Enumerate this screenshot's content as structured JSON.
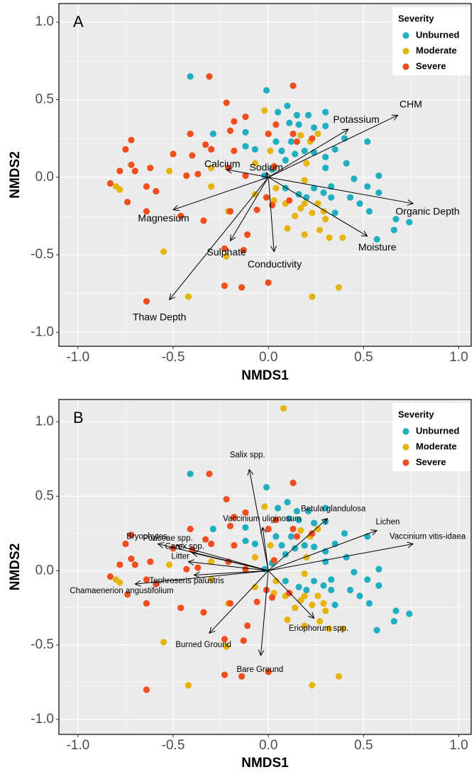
{
  "chart_data": [
    {
      "type": "scatter",
      "title": "A",
      "xlabel": "NMDS1",
      "ylabel": "NMDS2",
      "legend_title": "Severity",
      "legend": "top-right",
      "grid": true,
      "xlim": [
        -1.1,
        1.065
      ],
      "ylim": [
        -1.09,
        1.12
      ],
      "xticks": [
        {
          "value": -1,
          "label": "-1.0"
        },
        -0.5,
        {
          "value": 0,
          "label": "0.0"
        },
        0.5,
        {
          "value": 1,
          "label": "1.0"
        }
      ],
      "yticks": [
        {
          "value": -1,
          "label": "-1.0"
        },
        -0.5,
        {
          "value": 0,
          "label": "0.0"
        },
        0.5,
        {
          "value": 1,
          "label": "1.0"
        }
      ],
      "series": [
        {
          "name": "Unburned",
          "color": "#1FAFC0",
          "x": [
            -0.41,
            -0.01,
            -0.29,
            -0.12,
            -0.12,
            -0.07,
            0.05,
            0.1,
            0.15,
            0.21,
            0.24,
            0.3,
            0.3,
            0.11,
            0.16,
            0.07,
            0.04,
            0.12,
            0.14,
            0.09,
            0.19,
            0.24,
            0.3,
            0.4,
            0.52,
            0.35,
            0.3,
            0.41,
            0.45,
            0.58,
            0.52,
            0.33,
            0.43,
            0.48,
            0.53,
            0.58,
            0.29,
            0.24,
            0.66,
            0.67,
            0.74,
            0.57,
            0.2,
            0.16,
            0.09,
            0.02,
            -0.02,
            0.33,
            0.35
          ],
          "y": [
            0.65,
            0.56,
            0.28,
            0.29,
            0.2,
            0.18,
            0.42,
            0.46,
            0.4,
            0.4,
            0.32,
            0.42,
            0.33,
            0.35,
            0.34,
            0.17,
            0.23,
            0.23,
            0.15,
            0.11,
            0.17,
            0.16,
            0.13,
            0.25,
            0.23,
            0.18,
            0.06,
            0.09,
            -0.01,
            0.01,
            -0.06,
            -0.13,
            -0.13,
            -0.17,
            -0.22,
            -0.1,
            -0.1,
            -0.07,
            -0.34,
            -0.27,
            -0.29,
            -0.4,
            -0.13,
            -0.11,
            -0.07,
            0.05,
            0.01,
            -0.06,
            -0.23
          ]
        },
        {
          "name": "Moderate",
          "color": "#E5B50B",
          "x": [
            -0.02,
            -0.52,
            -0.8,
            -0.78,
            -0.55,
            -0.42,
            -0.3,
            -0.21,
            -0.3,
            -0.07,
            0.03,
            0.09,
            0.1,
            0.19,
            0.14,
            0.17,
            0.23,
            0.29,
            0.3,
            0.27,
            0.32,
            0.39,
            0.23,
            0.37,
            0.17,
            0.01,
            0.22,
            0.26,
            0.2,
            -0.07,
            0.04,
            0.19,
            -0.22,
            0.19,
            0.26
          ],
          "y": [
            0.43,
            0.04,
            -0.06,
            -0.08,
            -0.48,
            -0.77,
            -0.06,
            -0.22,
            0.06,
            -0.11,
            -0.15,
            -0.17,
            -0.33,
            -0.37,
            -0.25,
            -0.2,
            -0.23,
            -0.22,
            -0.27,
            -0.34,
            -0.39,
            -0.39,
            -0.77,
            -0.71,
            0.27,
            0.17,
            0.23,
            0.28,
            0.09,
            0.09,
            -0.07,
            -0.02,
            -0.51,
            -0.17,
            -0.17
          ]
        },
        {
          "name": "Severe",
          "color": "#F04E1E",
          "x": [
            -0.31,
            0.13,
            -0.22,
            -0.72,
            -0.75,
            -0.72,
            -0.7,
            -0.83,
            -0.78,
            -0.74,
            -0.64,
            -0.62,
            -0.59,
            -0.64,
            -0.5,
            -0.43,
            -0.41,
            -0.4,
            -0.37,
            -0.33,
            -0.3,
            -0.2,
            -0.18,
            -0.12,
            0.0,
            0.04,
            -0.18,
            -0.21,
            -0.2,
            -0.34,
            -0.46,
            -0.23,
            -0.13,
            -0.11,
            -0.06,
            0.02,
            0.11,
            -0.01,
            -0.12,
            0.13,
            0.15,
            0.23,
            -0.23,
            -0.14,
            0.0,
            -0.64,
            0.03
          ],
          "y": [
            0.65,
            0.59,
            0.48,
            0.24,
            0.18,
            0.08,
            0.04,
            -0.04,
            0.04,
            -0.16,
            -0.06,
            0.06,
            -0.09,
            -0.22,
            0.15,
            0.01,
            0.28,
            0.14,
            0.02,
            0.21,
            0.18,
            0.3,
            0.36,
            0.39,
            0.28,
            0.34,
            0.17,
            0.06,
            -0.22,
            -0.28,
            -0.25,
            -0.46,
            -0.47,
            -0.37,
            -0.21,
            -0.18,
            -0.15,
            -0.13,
            0.01,
            0.28,
            0.23,
            0.25,
            -0.7,
            -0.71,
            -0.68,
            -0.8,
            0.07
          ]
        }
      ],
      "vectors": [
        {
          "label": "CHM",
          "x": 0.68,
          "y": 0.4
        },
        {
          "label": "Potassium",
          "x": 0.42,
          "y": 0.31
        },
        {
          "label": "Calcium",
          "x": -0.22,
          "y": 0.05
        },
        {
          "label": "Sodium",
          "x": -0.01,
          "y": 0.03
        },
        {
          "label": "Organic Depth",
          "x": 0.76,
          "y": -0.17
        },
        {
          "label": "Moisture",
          "x": 0.52,
          "y": -0.38
        },
        {
          "label": "Conductivity",
          "x": 0.03,
          "y": -0.48
        },
        {
          "label": "Sulphate",
          "x": -0.2,
          "y": -0.41
        },
        {
          "label": "Magnesium",
          "x": -0.5,
          "y": -0.21
        },
        {
          "label": "Thaw Depth",
          "x": -0.52,
          "y": -0.79
        }
      ]
    },
    {
      "type": "scatter",
      "title": "B",
      "xlabel": "NMDS1",
      "ylabel": "NMDS2",
      "legend_title": "Severity",
      "legend": "top-right",
      "grid": true,
      "xlim": [
        -1.1,
        1.065
      ],
      "ylim": [
        -1.1,
        1.15
      ],
      "xticks": [
        {
          "value": -1,
          "label": "-1.0"
        },
        -0.5,
        {
          "value": 0,
          "label": "0.0"
        },
        0.5,
        {
          "value": 1,
          "label": "1.0"
        }
      ],
      "yticks": [
        {
          "value": -1,
          "label": "-1.0"
        },
        -0.5,
        {
          "value": 0,
          "label": "0.0"
        },
        0.5,
        {
          "value": 1,
          "label": "1.0"
        }
      ],
      "series": [
        {
          "name": "Unburned",
          "color": "#1FAFC0",
          "x": [
            -0.41,
            -0.01,
            -0.29,
            -0.12,
            -0.12,
            -0.07,
            0.05,
            0.1,
            0.15,
            0.21,
            0.24,
            0.3,
            0.3,
            0.11,
            0.16,
            0.07,
            0.04,
            0.12,
            0.14,
            0.09,
            0.19,
            0.24,
            0.3,
            0.4,
            0.52,
            0.35,
            0.3,
            0.41,
            0.45,
            0.58,
            0.52,
            0.33,
            0.43,
            0.48,
            0.53,
            0.58,
            0.29,
            0.24,
            0.66,
            0.67,
            0.74,
            0.57,
            0.2,
            0.16,
            0.09,
            0.02,
            -0.02,
            0.33,
            0.35
          ],
          "y": [
            0.65,
            0.56,
            0.28,
            0.29,
            0.2,
            0.18,
            0.42,
            0.46,
            0.4,
            0.4,
            0.32,
            0.42,
            0.33,
            0.35,
            0.34,
            0.17,
            0.23,
            0.23,
            0.15,
            0.11,
            0.17,
            0.16,
            0.13,
            0.25,
            0.23,
            0.18,
            0.06,
            0.09,
            -0.01,
            0.01,
            -0.06,
            -0.13,
            -0.13,
            -0.17,
            -0.22,
            -0.1,
            -0.1,
            -0.07,
            -0.34,
            -0.27,
            -0.29,
            -0.4,
            -0.13,
            -0.11,
            -0.07,
            0.05,
            0.01,
            -0.06,
            -0.23
          ]
        },
        {
          "name": "Moderate",
          "color": "#E5B50B",
          "x": [
            0.08,
            -0.02,
            -0.52,
            -0.8,
            -0.78,
            -0.55,
            -0.42,
            -0.3,
            -0.21,
            -0.3,
            -0.07,
            0.03,
            0.09,
            0.1,
            0.19,
            0.14,
            0.17,
            0.23,
            0.29,
            0.3,
            0.27,
            0.32,
            0.39,
            0.23,
            0.37,
            0.17,
            0.01,
            0.22,
            0.26,
            0.2,
            -0.07,
            0.04,
            0.19,
            -0.22,
            0.19,
            0.26
          ],
          "y": [
            1.09,
            0.43,
            0.04,
            -0.06,
            -0.08,
            -0.48,
            -0.77,
            -0.06,
            -0.22,
            0.06,
            -0.11,
            -0.15,
            -0.17,
            -0.33,
            -0.37,
            -0.25,
            -0.2,
            -0.23,
            -0.22,
            -0.27,
            -0.34,
            -0.39,
            -0.39,
            -0.77,
            -0.71,
            0.27,
            0.17,
            0.23,
            0.28,
            0.09,
            0.09,
            -0.07,
            -0.02,
            -0.51,
            -0.17,
            -0.17
          ]
        },
        {
          "name": "Severe",
          "color": "#F04E1E",
          "x": [
            -0.31,
            0.13,
            -0.22,
            -0.72,
            -0.75,
            -0.72,
            -0.7,
            -0.83,
            -0.78,
            -0.74,
            -0.64,
            -0.62,
            -0.59,
            -0.64,
            -0.5,
            -0.43,
            -0.41,
            -0.4,
            -0.37,
            -0.33,
            -0.3,
            -0.2,
            -0.18,
            -0.12,
            0.0,
            0.04,
            -0.18,
            -0.21,
            -0.2,
            -0.34,
            -0.46,
            -0.23,
            -0.13,
            -0.11,
            -0.06,
            0.02,
            0.11,
            -0.01,
            -0.12,
            0.13,
            0.15,
            0.23,
            -0.23,
            -0.14,
            0.0,
            -0.64,
            0.03
          ],
          "y": [
            0.65,
            0.59,
            0.48,
            0.24,
            0.18,
            0.08,
            0.04,
            -0.04,
            0.04,
            -0.16,
            -0.06,
            0.06,
            -0.09,
            -0.22,
            0.15,
            0.01,
            0.28,
            0.14,
            0.02,
            0.21,
            0.18,
            0.3,
            0.36,
            0.39,
            0.28,
            0.34,
            0.17,
            0.06,
            -0.22,
            -0.28,
            -0.25,
            -0.46,
            -0.47,
            -0.37,
            -0.21,
            -0.18,
            -0.15,
            -0.13,
            0.01,
            0.28,
            0.23,
            0.25,
            -0.7,
            -0.71,
            -0.68,
            -0.8,
            0.07
          ]
        }
      ],
      "vectors": [
        {
          "label": "Salix spp.",
          "x": -0.1,
          "y": 0.68
        },
        {
          "label": "Betula glandulosa",
          "x": 0.31,
          "y": 0.35
        },
        {
          "label": "Lichen",
          "x": 0.57,
          "y": 0.27
        },
        {
          "label": "Vaccinium vitis-idaea",
          "x": 0.76,
          "y": 0.18
        },
        {
          "label": "Vaccinium uliginosum",
          "x": -0.03,
          "y": 0.29
        },
        {
          "label": "Bryophytes",
          "x": -0.58,
          "y": 0.18
        },
        {
          "label": "Poaceae spp.",
          "x": -0.48,
          "y": 0.17
        },
        {
          "label": "Carex spp.",
          "x": -0.4,
          "y": 0.12
        },
        {
          "label": "Litter",
          "x": -0.42,
          "y": 0.06
        },
        {
          "label": "Tephroseris palustris",
          "x": -0.39,
          "y": -0.03
        },
        {
          "label": "Chamaenerion angustifolium",
          "x": -0.7,
          "y": -0.09
        },
        {
          "label": "Eriophorum spp.",
          "x": 0.24,
          "y": -0.32
        },
        {
          "label": "Burned Ground",
          "x": -0.31,
          "y": -0.42
        },
        {
          "label": "Bare Ground",
          "x": -0.04,
          "y": -0.57
        }
      ]
    }
  ]
}
